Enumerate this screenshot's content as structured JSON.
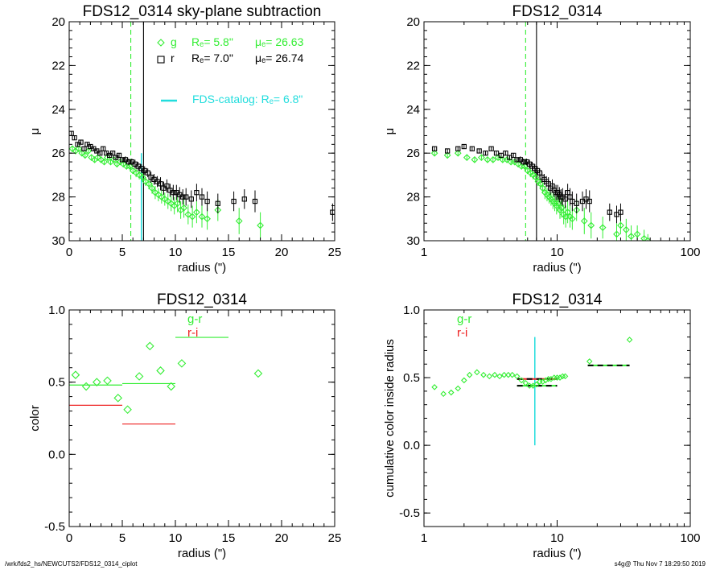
{
  "footer": {
    "left": "/wrk/fds2_hs/NEWCUTS2/FDS12_0314_ciplot",
    "right": "s4g@  Thu Nov  7 18:29:50 2019"
  },
  "colors": {
    "g": "#33ee33",
    "r": "#000000",
    "i": "#ee2222",
    "catalog": "#22dddd",
    "axis": "#000000"
  },
  "chart_data": [
    {
      "type": "scatter",
      "title": "FDS12_0314 sky-plane subtraction",
      "xlabel": "radius (\")",
      "ylabel": "μ",
      "xlim": [
        0,
        25
      ],
      "ylim": [
        30,
        20
      ],
      "xticks": [
        0,
        5,
        10,
        15,
        20,
        25
      ],
      "yticks": [
        20,
        22,
        24,
        26,
        28,
        30
      ],
      "grid": false,
      "legend": [
        {
          "band": "g",
          "text": "Rₑ=  5.8\"   μₑ= 26.63",
          "re_label": "Rₑ=  5.8\"",
          "mu_label": "μₑ= 26.63",
          "color": "#33ee33"
        },
        {
          "band": "r",
          "text": "Rₑ=  7.0\"   μₑ= 26.74",
          "re_label": "Rₑ=  7.0\"",
          "mu_label": "μₑ= 26.74",
          "color": "#000000"
        }
      ],
      "catalog_label": "FDS-catalog: Rₑ=  6.8\"",
      "vlines": [
        {
          "x": 5.8,
          "style": "dashed",
          "series": "g"
        },
        {
          "x": 7.0,
          "style": "solid",
          "series": "r"
        },
        {
          "x": 6.8,
          "style": "catalog",
          "y_from": 26.0,
          "y_to": 30
        }
      ],
      "series": [
        {
          "name": "g",
          "marker": "diamond",
          "x": [
            0.3,
            0.6,
            0.9,
            1.2,
            1.5,
            1.8,
            2.1,
            2.4,
            2.7,
            3.0,
            3.3,
            3.6,
            3.9,
            4.2,
            4.5,
            4.8,
            5.1,
            5.4,
            5.7,
            6.0,
            6.3,
            6.6,
            6.9,
            7.2,
            7.5,
            7.8,
            8.1,
            8.4,
            8.7,
            9.0,
            9.3,
            9.6,
            9.9,
            10.2,
            10.5,
            10.8,
            11.2,
            11.6,
            12.0,
            12.5,
            13.0,
            14.0,
            16.0,
            18.0
          ],
          "y": [
            25.8,
            25.9,
            25.8,
            26.0,
            26.1,
            25.9,
            26.2,
            26.3,
            26.2,
            26.3,
            26.4,
            26.2,
            26.4,
            26.3,
            26.5,
            26.4,
            26.5,
            26.6,
            26.6,
            26.8,
            26.9,
            27.0,
            27.1,
            27.3,
            27.4,
            27.6,
            27.8,
            27.9,
            28.0,
            28.1,
            28.2,
            28.3,
            28.4,
            28.3,
            28.6,
            28.5,
            28.8,
            28.9,
            28.7,
            28.9,
            29.0,
            28.6,
            29.1,
            29.3
          ],
          "err": [
            0.1,
            0.1,
            0.1,
            0.1,
            0.1,
            0.1,
            0.1,
            0.1,
            0.1,
            0.1,
            0.1,
            0.1,
            0.1,
            0.1,
            0.1,
            0.1,
            0.1,
            0.1,
            0.15,
            0.15,
            0.2,
            0.2,
            0.2,
            0.2,
            0.25,
            0.25,
            0.3,
            0.3,
            0.3,
            0.3,
            0.35,
            0.35,
            0.4,
            0.4,
            0.4,
            0.45,
            0.45,
            0.5,
            0.5,
            0.5,
            0.5,
            0.5,
            0.6,
            0.6
          ]
        },
        {
          "name": "r",
          "marker": "square",
          "x": [
            0.2,
            0.5,
            0.8,
            1.1,
            1.4,
            1.7,
            2.0,
            2.3,
            2.6,
            2.9,
            3.2,
            3.5,
            3.8,
            4.1,
            4.4,
            4.7,
            5.0,
            5.3,
            5.6,
            5.9,
            6.2,
            6.5,
            6.8,
            7.1,
            7.4,
            7.7,
            8.0,
            8.3,
            8.6,
            8.9,
            9.2,
            9.5,
            9.8,
            10.1,
            10.4,
            10.7,
            11.0,
            11.5,
            12.0,
            12.5,
            13.0,
            14.0,
            15.5,
            16.5,
            17.5,
            24.8
          ],
          "y": [
            25.1,
            25.3,
            25.6,
            25.5,
            25.8,
            25.6,
            25.7,
            25.8,
            25.9,
            26.0,
            25.8,
            26.0,
            26.1,
            26.0,
            26.2,
            26.1,
            26.3,
            26.3,
            26.4,
            26.4,
            26.5,
            26.6,
            26.7,
            26.8,
            26.9,
            27.1,
            27.2,
            27.3,
            27.4,
            27.6,
            27.5,
            27.7,
            27.8,
            27.8,
            27.9,
            28.0,
            28.0,
            28.1,
            27.8,
            28.0,
            28.2,
            28.3,
            28.2,
            28.1,
            28.2,
            28.7
          ],
          "err": [
            0.1,
            0.1,
            0.1,
            0.1,
            0.1,
            0.1,
            0.1,
            0.1,
            0.1,
            0.1,
            0.1,
            0.1,
            0.1,
            0.1,
            0.1,
            0.1,
            0.1,
            0.15,
            0.15,
            0.15,
            0.2,
            0.2,
            0.2,
            0.2,
            0.2,
            0.25,
            0.25,
            0.25,
            0.3,
            0.3,
            0.3,
            0.3,
            0.35,
            0.35,
            0.35,
            0.35,
            0.4,
            0.4,
            0.4,
            0.4,
            0.45,
            0.45,
            0.45,
            0.45,
            0.5,
            0.4
          ]
        }
      ]
    },
    {
      "type": "scatter",
      "title": "FDS12_0314",
      "xlabel": "radius (\")",
      "ylabel": "μ",
      "xscale": "log",
      "xlim": [
        1,
        100
      ],
      "ylim": [
        30,
        20
      ],
      "xticks": [
        1,
        10,
        100
      ],
      "yticks": [
        20,
        22,
        24,
        26,
        28,
        30
      ],
      "grid": false,
      "vlines": [
        {
          "x": 5.8,
          "style": "dashed",
          "series": "g"
        },
        {
          "x": 7.0,
          "style": "solid",
          "series": "r"
        }
      ],
      "series": [
        {
          "name": "g",
          "marker": "diamond",
          "x": [
            1.2,
            1.5,
            1.8,
            2.1,
            2.4,
            2.7,
            3.0,
            3.3,
            3.6,
            3.9,
            4.2,
            4.5,
            4.8,
            5.1,
            5.4,
            5.7,
            6.0,
            6.3,
            6.6,
            6.9,
            7.2,
            7.5,
            7.8,
            8.1,
            8.4,
            8.7,
            9.0,
            9.3,
            9.6,
            9.9,
            10.2,
            10.5,
            10.8,
            11.2,
            11.6,
            12.0,
            12.5,
            13.0,
            14.0,
            16.0,
            18.0,
            22.0,
            28.0,
            30.0,
            33.0,
            36.0,
            40.0,
            45.0,
            48.0
          ],
          "y": [
            26.0,
            26.1,
            26.0,
            26.2,
            26.3,
            26.2,
            26.3,
            26.3,
            26.2,
            26.3,
            26.3,
            26.4,
            26.4,
            26.5,
            26.6,
            26.6,
            26.8,
            26.9,
            27.0,
            27.1,
            27.3,
            27.4,
            27.6,
            27.8,
            27.9,
            28.0,
            28.1,
            28.2,
            28.3,
            28.4,
            28.3,
            28.6,
            28.5,
            28.8,
            28.9,
            28.7,
            28.9,
            29.0,
            28.6,
            29.1,
            29.3,
            29.4,
            29.7,
            29.3,
            29.5,
            29.8,
            29.7,
            29.9,
            30.0
          ],
          "err": [
            0.1,
            0.1,
            0.1,
            0.1,
            0.1,
            0.1,
            0.1,
            0.1,
            0.1,
            0.1,
            0.1,
            0.1,
            0.1,
            0.1,
            0.1,
            0.15,
            0.15,
            0.2,
            0.2,
            0.2,
            0.2,
            0.25,
            0.25,
            0.3,
            0.3,
            0.3,
            0.3,
            0.35,
            0.35,
            0.4,
            0.4,
            0.4,
            0.45,
            0.45,
            0.5,
            0.5,
            0.5,
            0.5,
            0.5,
            0.6,
            0.6,
            0.5,
            0.5,
            0.4,
            0.5,
            0.5,
            0.4,
            0.4,
            0.3
          ]
        },
        {
          "name": "r",
          "marker": "square",
          "x": [
            1.2,
            1.5,
            1.8,
            2.0,
            2.3,
            2.6,
            2.9,
            3.2,
            3.5,
            3.8,
            4.1,
            4.4,
            4.7,
            5.0,
            5.3,
            5.6,
            5.9,
            6.2,
            6.5,
            6.8,
            7.1,
            7.4,
            7.7,
            8.0,
            8.3,
            8.6,
            8.9,
            9.2,
            9.5,
            9.8,
            10.1,
            10.4,
            10.7,
            11.0,
            11.5,
            12.0,
            12.5,
            13.0,
            14.0,
            15.5,
            16.5,
            17.5,
            24.8,
            28.0,
            30.0
          ],
          "y": [
            25.8,
            25.9,
            25.8,
            25.7,
            25.8,
            25.9,
            26.0,
            25.8,
            26.0,
            26.1,
            26.0,
            26.2,
            26.1,
            26.3,
            26.3,
            26.4,
            26.4,
            26.5,
            26.6,
            26.7,
            26.8,
            26.9,
            27.1,
            27.2,
            27.3,
            27.4,
            27.6,
            27.5,
            27.7,
            27.8,
            27.8,
            27.9,
            28.0,
            28.0,
            28.1,
            27.8,
            28.0,
            28.2,
            28.3,
            28.2,
            28.1,
            28.2,
            28.7,
            28.8,
            28.7
          ],
          "err": [
            0.1,
            0.1,
            0.1,
            0.1,
            0.1,
            0.1,
            0.1,
            0.1,
            0.1,
            0.1,
            0.1,
            0.1,
            0.1,
            0.1,
            0.15,
            0.15,
            0.15,
            0.2,
            0.2,
            0.2,
            0.2,
            0.2,
            0.25,
            0.25,
            0.25,
            0.3,
            0.3,
            0.3,
            0.3,
            0.35,
            0.35,
            0.35,
            0.35,
            0.4,
            0.4,
            0.4,
            0.4,
            0.45,
            0.45,
            0.45,
            0.45,
            0.5,
            0.4,
            0.4,
            0.4
          ]
        }
      ]
    },
    {
      "type": "scatter",
      "title": "FDS12_0314",
      "xlabel": "radius (\")",
      "ylabel": "color",
      "xlim": [
        0,
        25
      ],
      "ylim": [
        -0.5,
        1.0
      ],
      "xticks": [
        0,
        5,
        10,
        15,
        20,
        25
      ],
      "yticks": [
        -0.5,
        0.0,
        0.5,
        1.0
      ],
      "yticklabels": [
        "-0.5",
        "0.0",
        "0.5",
        "1.0"
      ],
      "grid": false,
      "legend": [
        {
          "text": "g-r",
          "color": "#33ee33"
        },
        {
          "text": "r-i",
          "color": "#ee2222"
        }
      ],
      "series": [
        {
          "name": "g-r",
          "marker": "diamond",
          "x": [
            0.6,
            1.6,
            2.6,
            3.6,
            4.6,
            5.5,
            6.6,
            7.6,
            8.6,
            9.6,
            10.6,
            17.8
          ],
          "y": [
            0.55,
            0.47,
            0.5,
            0.51,
            0.39,
            0.31,
            0.54,
            0.75,
            0.58,
            0.47,
            0.63,
            0.56
          ]
        }
      ],
      "segments": [
        {
          "series": "g-r",
          "x": [
            0,
            5
          ],
          "y": 0.48
        },
        {
          "series": "g-r",
          "x": [
            5,
            10
          ],
          "y": 0.49
        },
        {
          "series": "g-r",
          "x": [
            10,
            15
          ],
          "y": 0.81
        },
        {
          "series": "r-i",
          "x": [
            0,
            5
          ],
          "y": 0.34
        },
        {
          "series": "r-i",
          "x": [
            5,
            10
          ],
          "y": 0.21
        }
      ]
    },
    {
      "type": "scatter",
      "title": "FDS12_0314",
      "xlabel": "radius (\")",
      "ylabel": "cumulative color inside radius",
      "xscale": "log",
      "xlim": [
        1,
        100
      ],
      "ylim": [
        -0.6,
        1.0
      ],
      "xticks": [
        1,
        10,
        100
      ],
      "yticks": [
        -0.5,
        0.0,
        0.5,
        1.0
      ],
      "yticklabels": [
        "-0.5",
        "0.0",
        "0.5",
        "1.0"
      ],
      "grid": false,
      "legend": [
        {
          "text": "g-r",
          "color": "#33ee33"
        },
        {
          "text": "r-i",
          "color": "#ee2222"
        }
      ],
      "vlines": [
        {
          "x": 6.8,
          "style": "catalog",
          "y_from": 0.0,
          "y_to": 0.8
        }
      ],
      "series": [
        {
          "name": "g-r",
          "marker": "diamond",
          "x": [
            1.2,
            1.4,
            1.6,
            1.8,
            2.0,
            2.2,
            2.5,
            2.8,
            3.1,
            3.4,
            3.7,
            4.0,
            4.3,
            4.6,
            5.0,
            5.4,
            5.8,
            6.2,
            6.6,
            7.0,
            7.4,
            7.8,
            8.2,
            8.6,
            9.0,
            9.5,
            10.0,
            10.5,
            11.0,
            11.5,
            17.5,
            35.0
          ],
          "y": [
            0.43,
            0.38,
            0.39,
            0.42,
            0.48,
            0.52,
            0.54,
            0.52,
            0.51,
            0.52,
            0.51,
            0.52,
            0.52,
            0.52,
            0.51,
            0.48,
            0.46,
            0.44,
            0.44,
            0.45,
            0.47,
            0.47,
            0.48,
            0.49,
            0.49,
            0.5,
            0.5,
            0.5,
            0.51,
            0.51,
            0.62,
            0.78
          ]
        }
      ],
      "segments": [
        {
          "series": "g-r",
          "x": [
            5,
            10
          ],
          "y": 0.44,
          "style": "dashed-black"
        },
        {
          "series": "r-i",
          "x": [
            5,
            10
          ],
          "y": 0.49,
          "style": "dashed-black"
        },
        {
          "series": "g-r",
          "x": [
            17,
            35
          ],
          "y": 0.59,
          "style": "dashed-black"
        }
      ]
    }
  ]
}
